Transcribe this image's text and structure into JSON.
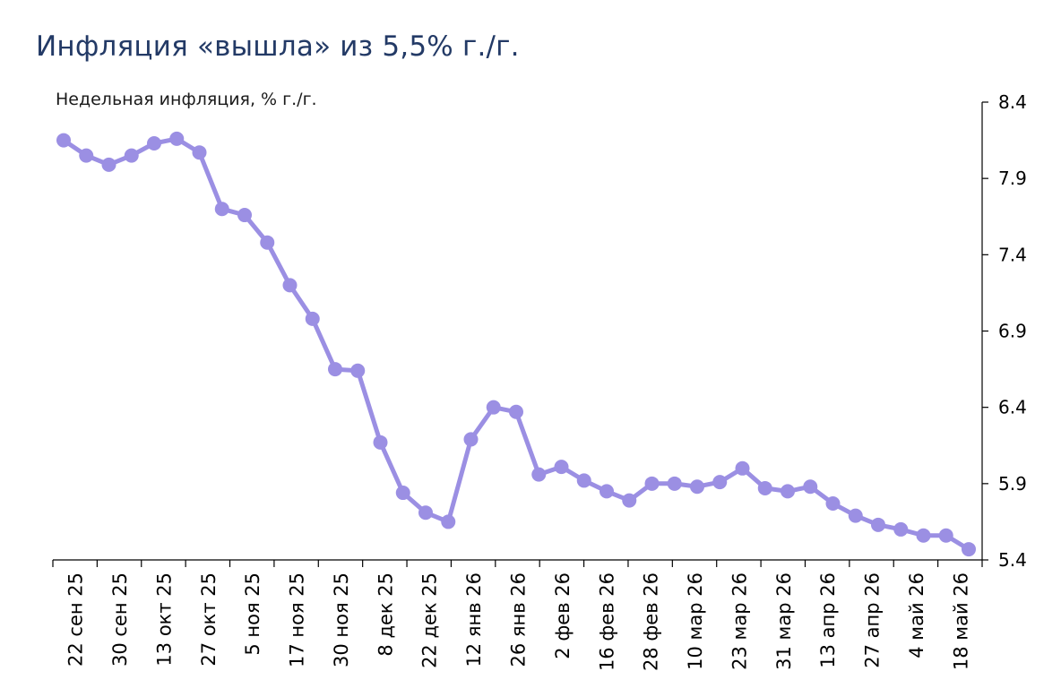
{
  "title": "Инфляция «вышла» из 5,5% г./г.",
  "colors": {
    "title": "#233a66",
    "series": "#9b8fe3",
    "axis": "#000000"
  },
  "chart_data": {
    "type": "line",
    "title": "Инфляция «вышла» из 5,5% г./г.",
    "ylabel": "Недельная инфляция, % г./г.",
    "xlabel": "",
    "ylim": [
      5.4,
      8.4
    ],
    "yticks": [
      "5.4",
      "5.9",
      "6.4",
      "6.9",
      "7.4",
      "7.9",
      "8.4"
    ],
    "y_axis_side": "right",
    "grid": false,
    "legend": "none",
    "xtick_labels": [
      "22 сен 25",
      "30 сен 25",
      "13 окт 25",
      "27 окт 25",
      "5 ноя 25",
      "17 ноя 25",
      "30 ноя 25",
      "8 дек 25",
      "22 дек 25",
      "12 янв 26",
      "26 янв 26",
      "2 фев 26",
      "16 фев 26",
      "28 фев 26",
      "10 мар 26",
      "23 мар 26",
      "31 мар 26",
      "13 апр 26",
      "27 апр 26",
      "4 май 26",
      "18 май 26"
    ],
    "series": [
      {
        "values": [
          8.15,
          8.05,
          7.99,
          8.05,
          8.13,
          8.16,
          8.07,
          7.7,
          7.66,
          7.48,
          7.2,
          6.98,
          6.65,
          6.64,
          6.17,
          5.84,
          5.71,
          5.65,
          6.19,
          6.4,
          6.37,
          5.96,
          6.01,
          5.92,
          5.85,
          5.79,
          5.9,
          5.9,
          5.88,
          5.91,
          6.0,
          5.87,
          5.85,
          5.88,
          5.77,
          5.69,
          5.63,
          5.6,
          5.56,
          5.56,
          5.47
        ]
      }
    ]
  }
}
